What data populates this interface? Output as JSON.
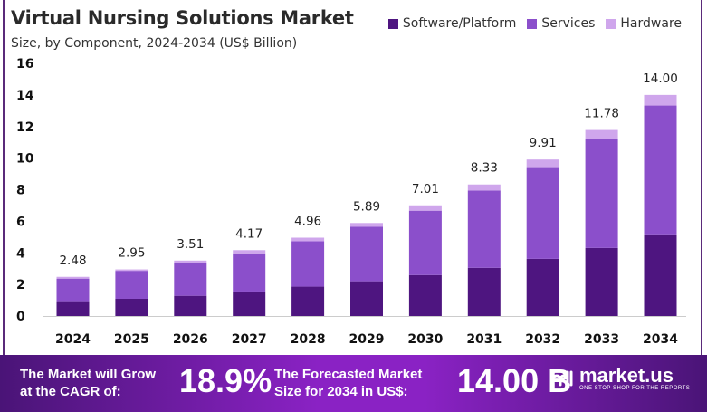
{
  "chart_data": {
    "type": "bar",
    "stacked": true,
    "title": "Virtual Nursing Solutions Market",
    "subtitle": "Size, by Component, 2024-2034 (US$ Billion)",
    "categories": [
      "2024",
      "2025",
      "2026",
      "2027",
      "2028",
      "2029",
      "2030",
      "2031",
      "2032",
      "2033",
      "2034"
    ],
    "series": [
      {
        "name": "Software/Platform",
        "color": "#4e1580",
        "values": [
          0.94,
          1.09,
          1.28,
          1.55,
          1.86,
          2.2,
          2.59,
          3.05,
          3.62,
          4.31,
          5.17
        ]
      },
      {
        "name": "Services",
        "color": "#8b4fcb",
        "values": [
          1.43,
          1.77,
          2.07,
          2.42,
          2.87,
          3.45,
          4.08,
          4.9,
          5.81,
          6.9,
          8.16
        ]
      },
      {
        "name": "Hardware",
        "color": "#cfa6ec",
        "values": [
          0.11,
          0.09,
          0.16,
          0.2,
          0.23,
          0.24,
          0.34,
          0.38,
          0.48,
          0.57,
          0.67
        ]
      }
    ],
    "totals": [
      "2.48",
      "2.95",
      "3.51",
      "4.17",
      "4.96",
      "5.89",
      "7.01",
      "8.33",
      "9.91",
      "11.78",
      "14.00"
    ],
    "yticks": [
      "0",
      "2",
      "4",
      "6",
      "8",
      "10",
      "12",
      "14",
      "16"
    ],
    "ylim": [
      0,
      16
    ],
    "grid": false,
    "legend_position": "top-right"
  },
  "footer": {
    "cagr_label_1": "The Market will Grow",
    "cagr_label_2": "at the CAGR of:",
    "cagr_value": "18.9%",
    "forecast_label_1": "The Forecasted Market",
    "forecast_label_2": "Size for 2034 in US$:",
    "forecast_value": "14.00 B",
    "brand": "market.us",
    "brand_tagline": "ONE STOP SHOP FOR THE REPORTS"
  }
}
